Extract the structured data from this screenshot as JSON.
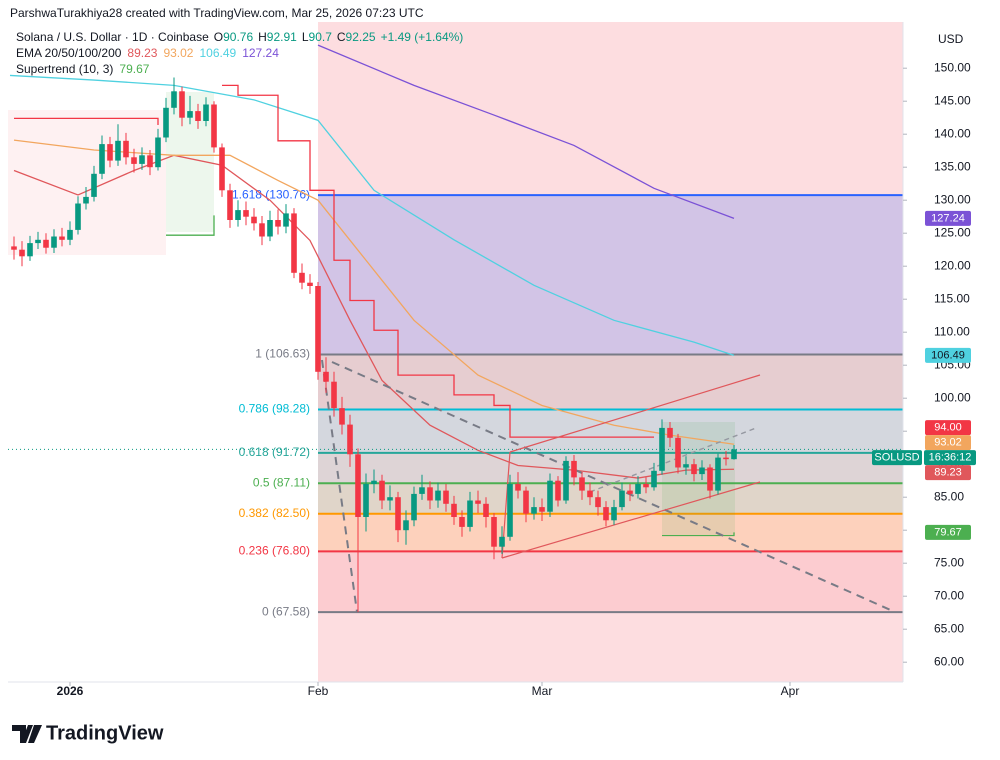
{
  "credit": "ParshwaTurakhiya28 created with TradingView.com, Mar 25, 2026 07:23 UTC",
  "logo": "TradingView",
  "chart_data": {
    "type": "candlestick",
    "title": "Solana / U.S. Dollar · 1D · Coinbase",
    "ohlc_letters": [
      "O",
      "H",
      "L",
      "C"
    ],
    "change": "+1.49 (+1.64%)",
    "currency": "USD",
    "symbol": "SOLUSD",
    "countdown": "16:36:12",
    "up_color": "#089981",
    "down_color": "#f23645",
    "open": [
      123.0,
      122.5,
      121.5,
      123.5,
      124.0,
      122.8,
      124.5,
      124.0,
      125.5,
      129.5,
      130.5,
      134.0,
      138.5,
      136.0,
      139.0,
      136.5,
      135.5,
      136.8,
      135.0,
      139.5,
      144.0,
      146.5,
      142.5,
      143.5,
      142.0,
      144.5,
      138.0,
      131.5,
      127.0,
      128.5,
      127.5,
      126.5,
      124.5,
      127.0,
      126.0,
      128.0,
      119.0,
      117.5,
      117.0,
      104.0,
      102.5,
      98.5,
      96.0,
      91.5,
      82.0,
      87.0,
      87.5,
      84.5,
      85.0,
      80.0,
      81.5,
      85.5,
      86.5,
      84.5,
      86.0,
      84.0,
      82.0,
      80.5,
      84.5,
      84.0,
      82.0,
      77.5,
      79.0,
      87.0,
      86.0,
      82.5,
      83.5,
      82.8,
      87.5,
      84.5,
      90.5,
      88.0,
      86.0,
      85.0,
      83.5,
      81.5,
      83.5,
      86.0,
      85.5,
      87.0,
      86.5,
      89.0,
      95.5,
      94.0,
      89.5,
      90.0,
      88.5,
      89.5,
      86.0,
      91.0,
      90.76
    ],
    "high": [
      124.5,
      123.8,
      124.6,
      125.2,
      125.0,
      125.6,
      125.8,
      126.8,
      130.6,
      132.0,
      135.2,
      139.8,
      139.6,
      141.5,
      140.2,
      137.8,
      138.0,
      137.6,
      140.8,
      145.5,
      148.6,
      147.2,
      145.8,
      144.6,
      145.6,
      145.0,
      138.6,
      132.5,
      130.0,
      129.8,
      128.8,
      127.6,
      128.4,
      128.6,
      129.4,
      128.8,
      120.4,
      118.8,
      117.6,
      106.2,
      104.0,
      100.2,
      97.5,
      92.4,
      88.6,
      89.2,
      88.4,
      86.8,
      85.8,
      83.0,
      86.6,
      88.4,
      87.4,
      87.2,
      87.0,
      85.2,
      83.0,
      85.8,
      86.0,
      85.0,
      82.6,
      80.6,
      88.4,
      88.8,
      86.6,
      85.0,
      84.8,
      88.6,
      88.2,
      91.2,
      91.4,
      88.8,
      87.2,
      86.0,
      84.4,
      84.6,
      87.2,
      87.0,
      88.2,
      88.0,
      90.2,
      96.8,
      96.4,
      94.6,
      91.2,
      90.8,
      90.6,
      90.0,
      91.6,
      92.0,
      92.91
    ],
    "low": [
      121.0,
      120.0,
      120.8,
      122.6,
      121.9,
      122.0,
      123.0,
      123.2,
      124.8,
      128.6,
      129.8,
      133.2,
      135.0,
      135.2,
      135.4,
      134.2,
      134.6,
      133.8,
      134.5,
      138.8,
      143.0,
      141.2,
      141.5,
      140.8,
      141.2,
      137.2,
      130.5,
      125.8,
      126.0,
      126.2,
      125.4,
      123.2,
      123.8,
      124.8,
      125.0,
      118.2,
      116.5,
      115.8,
      102.8,
      100.8,
      97.2,
      94.5,
      89.6,
      67.58,
      79.8,
      85.6,
      83.2,
      83.0,
      78.2,
      77.8,
      80.6,
      84.6,
      83.2,
      83.4,
      82.8,
      80.8,
      79.0,
      79.8,
      82.6,
      80.4,
      75.6,
      76.4,
      78.4,
      84.8,
      81.2,
      81.6,
      81.4,
      82.0,
      83.6,
      84.0,
      86.8,
      84.6,
      83.8,
      82.2,
      80.6,
      80.8,
      83.0,
      84.4,
      84.8,
      85.6,
      86.0,
      88.4,
      92.6,
      88.6,
      88.4,
      87.4,
      87.6,
      84.8,
      85.4,
      89.8,
      90.7
    ],
    "close": [
      122.5,
      121.5,
      123.5,
      124.0,
      122.8,
      124.5,
      124.0,
      125.5,
      129.5,
      130.5,
      134.0,
      138.5,
      136.0,
      139.0,
      136.5,
      135.5,
      136.8,
      135.0,
      139.5,
      144.0,
      146.5,
      142.5,
      143.5,
      142.0,
      144.5,
      138.0,
      131.5,
      127.0,
      128.5,
      127.5,
      126.5,
      124.5,
      127.0,
      126.0,
      128.0,
      119.0,
      117.5,
      117.0,
      104.0,
      102.5,
      98.5,
      96.0,
      91.5,
      82.0,
      87.0,
      87.5,
      84.5,
      85.0,
      80.0,
      81.5,
      85.5,
      86.5,
      84.5,
      86.0,
      84.0,
      82.0,
      80.5,
      84.5,
      84.0,
      82.0,
      77.5,
      79.0,
      87.0,
      86.0,
      82.5,
      83.5,
      82.8,
      87.5,
      84.5,
      90.5,
      88.0,
      86.0,
      85.0,
      83.5,
      81.5,
      83.5,
      86.0,
      85.5,
      87.0,
      86.5,
      89.0,
      95.5,
      94.0,
      89.5,
      90.0,
      88.5,
      89.5,
      86.0,
      91.0,
      90.76,
      92.25
    ],
    "xlim": [
      -0.75,
      111.125
    ],
    "xticks": [
      {
        "value": 7,
        "label": "2026"
      },
      {
        "value": 38,
        "label": "Feb"
      },
      {
        "value": 66,
        "label": "Mar"
      },
      {
        "value": 97,
        "label": "Apr"
      }
    ],
    "ylim": [
      57,
      157
    ],
    "yticks": [
      {
        "value": 60,
        "label": "60.00"
      },
      {
        "value": 65,
        "label": "65.00"
      },
      {
        "value": 70,
        "label": "70.00"
      },
      {
        "value": 75,
        "label": "75.00"
      },
      {
        "value": 80,
        "label": "80.00"
      },
      {
        "value": 85,
        "label": "85.00"
      },
      {
        "value": 90,
        "label": "90.00"
      },
      {
        "value": 95,
        "label": "95.00"
      },
      {
        "value": 100,
        "label": "100.00"
      },
      {
        "value": 105,
        "label": "105.00"
      },
      {
        "value": 110,
        "label": "110.00"
      },
      {
        "value": 115,
        "label": "115.00"
      },
      {
        "value": 120,
        "label": "120.00"
      },
      {
        "value": 125,
        "label": "125.00"
      },
      {
        "value": 130,
        "label": "130.00"
      },
      {
        "value": 135,
        "label": "135.00"
      },
      {
        "value": 140,
        "label": "140.00"
      },
      {
        "value": 145,
        "label": "145.00"
      },
      {
        "value": 150,
        "label": "150.00"
      }
    ],
    "grid": false,
    "indicator_label": "EMA 20/50/100/200",
    "series": [
      {
        "color": "#e0575b",
        "x": [
          0,
          8,
          15,
          20,
          26,
          32,
          37,
          42,
          46,
          52,
          58,
          63,
          70,
          78,
          84,
          90
        ],
        "values": [
          134.5,
          130.8,
          134.5,
          136.8,
          135.3,
          130.0,
          123.9,
          111.8,
          102.7,
          95.9,
          92.1,
          89.8,
          89.1,
          87.9,
          89.1,
          89.23
        ]
      },
      {
        "color": "#f2a65e",
        "x": [
          0,
          10,
          20,
          27,
          33,
          38,
          44,
          50,
          58,
          66,
          75,
          82,
          90
        ],
        "values": [
          139.1,
          137.6,
          136.8,
          136.8,
          133.0,
          130.0,
          120.9,
          111.8,
          103.5,
          98.9,
          95.9,
          94.4,
          93.02
        ]
      },
      {
        "color": "#4fd1e0",
        "x": [
          -0.5,
          10,
          20,
          30,
          38,
          45,
          55,
          65,
          75,
          85,
          90
        ],
        "values": [
          148.9,
          148.2,
          147.4,
          145.2,
          142.1,
          131.5,
          124.0,
          117.1,
          111.8,
          108.5,
          106.49
        ]
      },
      {
        "color": "#7b52d6",
        "x": [
          38,
          50,
          60,
          70,
          80,
          90
        ],
        "values": [
          153.5,
          147.4,
          142.9,
          138.3,
          131.8,
          127.24
        ]
      }
    ],
    "supertrend": {
      "name": "Supertrend (10, 3)",
      "colors": [
        "#f23645",
        "#4caf50",
        "#f23645",
        "#4caf50"
      ],
      "x": [
        0,
        18,
        18.5,
        19,
        25,
        25.5,
        26,
        28,
        33,
        37,
        40,
        42,
        45,
        48,
        55,
        60,
        62,
        80,
        80.5,
        81,
        90
      ],
      "values": [
        142.4,
        141.4,
        null,
        124.7,
        127.7,
        null,
        147.4,
        145.9,
        139.0,
        131.5,
        120.9,
        114.8,
        110.3,
        103.5,
        100.5,
        98.9,
        94.1,
        94.1,
        null,
        79.2,
        79.67
      ]
    },
    "price_labels": [
      {
        "value": 94,
        "label": "94.00",
        "color": "#f23645"
      }
    ],
    "fib_levels": [
      {
        "label": "1.618 (130.76)",
        "value": 130.76,
        "color": "#2962ff"
      },
      {
        "label": "1 (106.63)",
        "value": 106.63,
        "color": "#787b86"
      },
      {
        "label": "0.786 (98.28)",
        "value": 98.28,
        "color": "#00bcd4"
      },
      {
        "label": "0.618 (91.72)",
        "value": 91.72,
        "color": "#26a69a"
      },
      {
        "label": "0.5 (87.11)",
        "value": 87.11,
        "color": "#4caf50"
      },
      {
        "label": "0.382 (82.50)",
        "value": 82.5,
        "color": "#ff9800"
      },
      {
        "label": "0.236 (76.80)",
        "value": 76.8,
        "color": "#f23645"
      },
      {
        "label": "0 (67.58)",
        "value": 67.58,
        "color": "#787b86"
      }
    ],
    "zone_colors": [
      "rgba(41,98,255,0.20)",
      "rgba(150,150,150,0.22)",
      "rgba(0,188,212,0.16)",
      "rgba(38,166,154,0.14)",
      "rgba(76,175,80,0.16)",
      "rgba(255,152,0,0.16)",
      "rgba(242,54,69,0.10)"
    ],
    "background_color": "rgba(242,54,69,0.17)"
  }
}
